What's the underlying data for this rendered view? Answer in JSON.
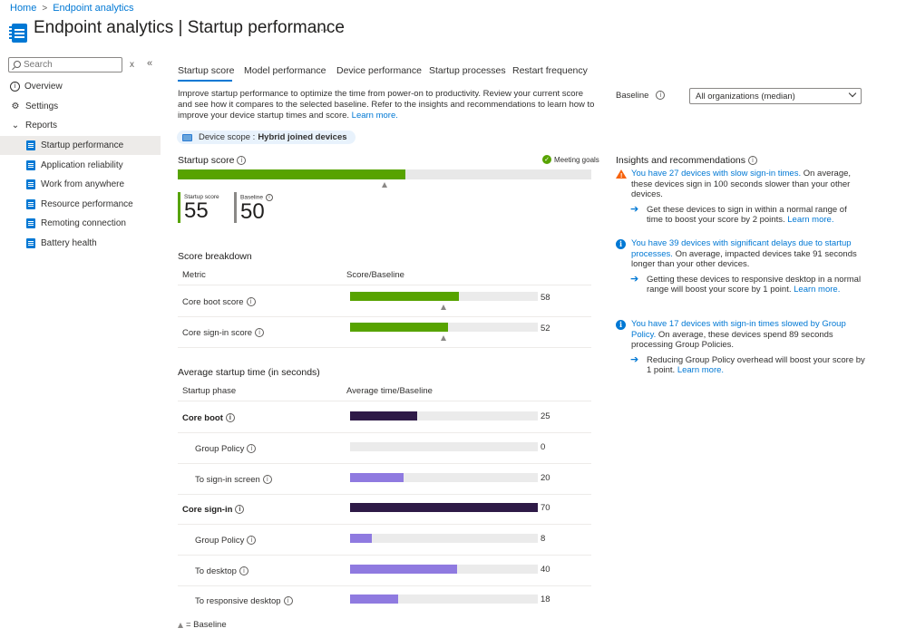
{
  "breadcrumb": {
    "home": "Home",
    "current": "Endpoint analytics"
  },
  "header": {
    "title_bold": "Endpoint analytics",
    "title_sep": " | ",
    "title_rest": "Startup performance",
    "more": "···"
  },
  "sidebar": {
    "search_placeholder": "Search",
    "clear": "x",
    "collapse": "«",
    "items": [
      {
        "label": "Overview",
        "icon": "info-circle-icon"
      },
      {
        "label": "Settings",
        "icon": "gear-icon"
      },
      {
        "label": "Reports",
        "icon": "chevron-down-icon"
      },
      {
        "label": "Startup performance",
        "icon": "report-page-icon"
      },
      {
        "label": "Application reliability",
        "icon": "report-page-icon"
      },
      {
        "label": "Work from anywhere",
        "icon": "report-page-icon"
      },
      {
        "label": "Resource performance",
        "icon": "report-page-icon"
      },
      {
        "label": "Remoting connection",
        "icon": "report-page-icon"
      },
      {
        "label": "Battery health",
        "icon": "report-page-icon"
      }
    ],
    "selected": "Startup performance"
  },
  "tabs": [
    "Startup score",
    "Model performance",
    "Device performance",
    "Startup processes",
    "Restart frequency"
  ],
  "active_tab": "Startup score",
  "intro": {
    "text": "Improve startup performance to optimize the time from power-on to productivity. Review your current score and see how it compares to the selected baseline. Refer to the insights and recommendations to learn how to improve your device startup times and score. ",
    "link": "Learn more."
  },
  "scope": {
    "label": "Device scope :",
    "value": "Hybrid joined devices"
  },
  "startup_score": {
    "title": "Startup score",
    "status": "Meeting goals",
    "score_label": "Startup score",
    "score": 55,
    "baseline_label": "Baseline",
    "baseline": 50,
    "max": 100,
    "colors": {
      "score": "#57a300",
      "baseline": "#8a8886"
    }
  },
  "score_breakdown": {
    "title": "Score breakdown",
    "col_metric": "Metric",
    "col_value": "Score/Baseline",
    "max": 100,
    "rows": [
      {
        "label": "Core boot score",
        "value": 58,
        "baseline": 50
      },
      {
        "label": "Core sign-in score",
        "value": 52,
        "baseline": 50
      }
    ]
  },
  "startup_time": {
    "title": "Average startup time (in seconds)",
    "col_phase": "Startup phase",
    "col_value": "Average time/Baseline",
    "max": 70,
    "colors": {
      "primary": "#2e1a47",
      "secondary": "#8f7ae0"
    },
    "rows": [
      {
        "label": "Core boot",
        "value": 25,
        "primary": true
      },
      {
        "label": "Group Policy",
        "value": 0,
        "primary": false
      },
      {
        "label": "To sign-in screen",
        "value": 20,
        "primary": false
      },
      {
        "label": "Core sign-in",
        "value": 70,
        "primary": true
      },
      {
        "label": "Group Policy",
        "value": 8,
        "primary": false
      },
      {
        "label": "To desktop",
        "value": 40,
        "primary": false
      },
      {
        "label": "To responsive desktop",
        "value": 18,
        "primary": false
      }
    ]
  },
  "legend_note": "= Baseline",
  "baseline_select": {
    "label": "Baseline",
    "value": "All organizations (median)"
  },
  "insights": {
    "title": "Insights and recommendations",
    "items": [
      {
        "icon": "warning-icon",
        "link": "You have 27 devices with slow sign-in times.",
        "text": " On average, these devices sign in 100 seconds slower than your other devices.",
        "rec": "Get these devices to sign in within a normal range of time to boost your score by 2 points. ",
        "rec_link": "Learn more."
      },
      {
        "icon": "info-icon",
        "link": "You have 39 devices with significant delays due to startup processes.",
        "text": " On average, impacted devices take 91 seconds longer than your other devices.",
        "rec": "Getting these devices to responsive desktop in a normal range will boost your score by 1 point. ",
        "rec_link": "Learn more."
      },
      {
        "icon": "info-icon",
        "link": "You have 17 devices with sign-in times slowed by Group Policy.",
        "text": " On average, these devices spend 89 seconds processing Group Policies.",
        "rec": "Reducing Group Policy overhead will boost your score by 1 point. ",
        "rec_link": "Learn more."
      }
    ]
  }
}
